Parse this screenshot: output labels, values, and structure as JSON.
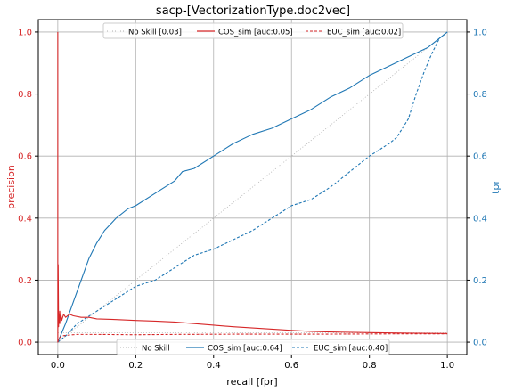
{
  "chart_data": {
    "type": "line",
    "title": "sacp-[VectorizationType.doc2vec]",
    "xlabel": "recall [fpr]",
    "ylabel_left": "precision",
    "ylabel_right": "tpr",
    "xlim": [
      -0.05,
      1.05
    ],
    "ylim": [
      -0.04,
      1.04
    ],
    "grid": true,
    "x_ticks": [
      "0.0",
      "0.2",
      "0.4",
      "0.6",
      "0.8",
      "1.0"
    ],
    "y_ticks": [
      "0.0",
      "0.2",
      "0.4",
      "0.6",
      "0.8",
      "1.0"
    ],
    "colors": {
      "precision_axis": "#d62728",
      "tpr_axis": "#1f77b4",
      "no_skill": "#b0b0b0"
    },
    "legend_top": {
      "placement": "top-center",
      "entries": [
        "No Skill [0.03]",
        "COS_sim [auc:0.05]",
        "EUC_sim [auc:0.02]"
      ]
    },
    "legend_bottom": {
      "placement": "bottom-center",
      "entries": [
        "No Skill",
        "COS_sim [auc:0.64]",
        "EUC_sim [auc:0.40]"
      ]
    },
    "pr_series": [
      {
        "name": "No Skill [0.03]",
        "axis": "left",
        "style": "dotted",
        "color": "#b0b0b0",
        "x": [
          0,
          1
        ],
        "y": [
          0.03,
          0.03
        ]
      },
      {
        "name": "COS_sim [auc:0.05]",
        "axis": "left",
        "style": "solid",
        "color": "#d62728",
        "x": [
          0,
          0,
          0.001,
          0.002,
          0.003,
          0.005,
          0.007,
          0.01,
          0.015,
          0.02,
          0.03,
          0.04,
          0.06,
          0.08,
          0.1,
          0.15,
          0.2,
          0.25,
          0.3,
          0.35,
          0.4,
          0.45,
          0.5,
          0.55,
          0.6,
          0.65,
          0.7,
          0.8,
          0.9,
          1.0
        ],
        "y": [
          1.0,
          0.0,
          0.25,
          0.05,
          0.1,
          0.06,
          0.1,
          0.07,
          0.09,
          0.08,
          0.09,
          0.085,
          0.08,
          0.08,
          0.075,
          0.073,
          0.07,
          0.068,
          0.065,
          0.06,
          0.055,
          0.05,
          0.046,
          0.042,
          0.038,
          0.035,
          0.033,
          0.031,
          0.029,
          0.028
        ]
      },
      {
        "name": "EUC_sim [auc:0.02]",
        "axis": "left",
        "style": "dashed",
        "color": "#d62728",
        "x": [
          0,
          0.002,
          0.005,
          0.01,
          0.02,
          0.05,
          0.1,
          0.2,
          0.3,
          0.5,
          0.7,
          0.9,
          1.0
        ],
        "y": [
          0.0,
          0.01,
          0.015,
          0.02,
          0.022,
          0.025,
          0.025,
          0.024,
          0.025,
          0.026,
          0.026,
          0.027,
          0.027
        ]
      }
    ],
    "roc_series": [
      {
        "name": "No Skill",
        "axis": "right",
        "style": "dotted",
        "color": "#b0b0b0",
        "x": [
          0,
          1
        ],
        "y": [
          0,
          1
        ]
      },
      {
        "name": "COS_sim [auc:0.64]",
        "axis": "right",
        "style": "solid",
        "color": "#1f77b4",
        "x": [
          0,
          0.01,
          0.02,
          0.04,
          0.06,
          0.08,
          0.1,
          0.12,
          0.15,
          0.18,
          0.2,
          0.25,
          0.3,
          0.32,
          0.35,
          0.4,
          0.45,
          0.5,
          0.55,
          0.6,
          0.65,
          0.7,
          0.75,
          0.8,
          0.85,
          0.9,
          0.95,
          0.98,
          1.0
        ],
        "y": [
          0,
          0.03,
          0.06,
          0.13,
          0.2,
          0.27,
          0.32,
          0.36,
          0.4,
          0.43,
          0.44,
          0.48,
          0.52,
          0.55,
          0.56,
          0.6,
          0.64,
          0.67,
          0.69,
          0.72,
          0.75,
          0.79,
          0.82,
          0.86,
          0.89,
          0.92,
          0.95,
          0.98,
          1.0
        ]
      },
      {
        "name": "EUC_sim [auc:0.40]",
        "axis": "right",
        "style": "dashed",
        "color": "#1f77b4",
        "x": [
          0,
          0.02,
          0.05,
          0.1,
          0.15,
          0.2,
          0.25,
          0.3,
          0.35,
          0.4,
          0.45,
          0.5,
          0.55,
          0.6,
          0.65,
          0.7,
          0.75,
          0.8,
          0.85,
          0.87,
          0.9,
          0.92,
          0.94,
          0.96,
          0.98,
          1.0
        ],
        "y": [
          0,
          0.02,
          0.06,
          0.1,
          0.14,
          0.18,
          0.2,
          0.24,
          0.28,
          0.3,
          0.33,
          0.36,
          0.4,
          0.44,
          0.46,
          0.5,
          0.55,
          0.6,
          0.64,
          0.66,
          0.72,
          0.8,
          0.87,
          0.93,
          0.98,
          1.0
        ]
      }
    ]
  }
}
